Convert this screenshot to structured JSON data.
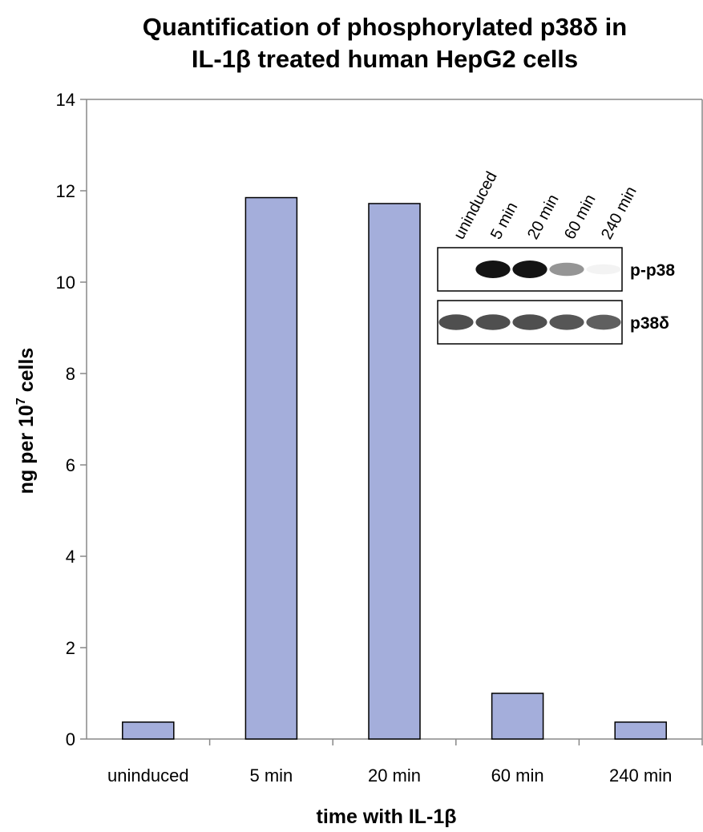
{
  "chart_data": {
    "type": "bar",
    "title_lines": [
      "Quantification of phosphorylated p38δ in",
      "IL-1β treated human HepG2 cells"
    ],
    "xlabel": "time with IL-1β",
    "ylabel_prefix": "ng per 10",
    "ylabel_sup": "7",
    "ylabel_suffix": " cells",
    "categories": [
      "uninduced",
      "5 min",
      "20 min",
      "60 min",
      "240 min"
    ],
    "values": [
      0.37,
      11.85,
      11.72,
      1.0,
      0.37
    ],
    "ylim": [
      0,
      14
    ],
    "yticks": [
      "0",
      "2",
      "4",
      "6",
      "8",
      "10",
      "12",
      "14"
    ],
    "bar_color": "#a4aedb",
    "grid": false,
    "legend": "none"
  },
  "inset_blot": {
    "lane_labels": [
      "uninduced",
      "5 min",
      "20 min",
      "60 min",
      "240 min"
    ],
    "rows": [
      {
        "label": "p-p38",
        "intensities": [
          0.0,
          1.0,
          1.0,
          0.45,
          0.05
        ]
      },
      {
        "label": "p38δ",
        "intensities": [
          0.75,
          0.75,
          0.75,
          0.72,
          0.68
        ]
      }
    ]
  }
}
